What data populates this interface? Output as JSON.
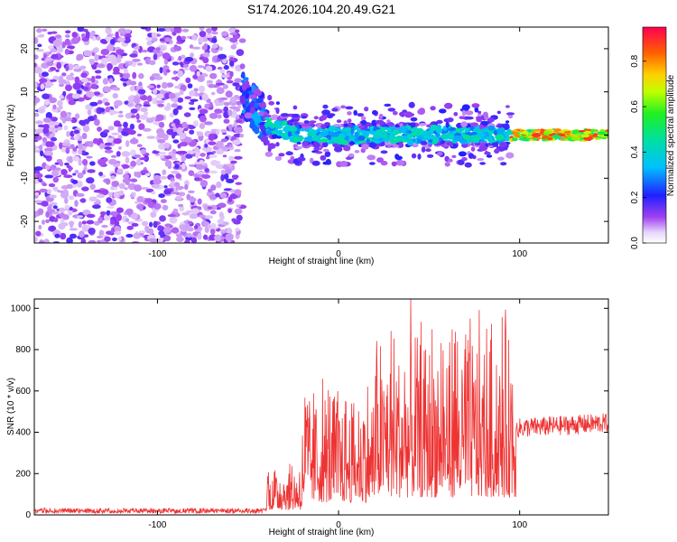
{
  "title": "S174.2026.104.20.49.G21",
  "chart_data": [
    {
      "type": "heatmap",
      "name": "spectrogram",
      "xlabel": "Height of straight line (km)",
      "ylabel": "Frequency (Hz)",
      "xlim": [
        -168,
        149
      ],
      "ylim": [
        -25,
        25
      ],
      "xticks": [
        -100,
        0,
        100
      ],
      "xtick_labels": [
        "-100",
        "0",
        "100"
      ],
      "yticks": [
        -20,
        -10,
        0,
        10,
        20
      ],
      "ytick_labels": [
        "-20",
        "-10",
        "0",
        "10",
        "20"
      ],
      "regions": [
        {
          "name": "noise",
          "x_range": [
            -168,
            -53
          ],
          "description_value": "scattered low amplitude 0.1-0.5"
        },
        {
          "name": "transition",
          "x_range": [
            -53,
            -40
          ],
          "center_hz": [
            10,
            3
          ]
        },
        {
          "name": "signal",
          "x_range": [
            -40,
            95
          ],
          "center_hz": 0,
          "amplitude": [
            0.2,
            0.6
          ]
        },
        {
          "name": "strong-signal",
          "x_range": [
            95,
            149
          ],
          "center_hz": 0,
          "amplitude": [
            0.6,
            0.9
          ]
        }
      ],
      "colorbar": {
        "label": "Normalized spectral amplitude",
        "range": [
          0.0,
          0.95
        ],
        "ticks": [
          0.0,
          0.2,
          0.4,
          0.6,
          0.8
        ],
        "tick_labels": [
          "0.0",
          "0.2",
          "0.4",
          "0.6",
          "0.8"
        ]
      }
    },
    {
      "type": "line",
      "name": "snr",
      "xlabel": "Height of straight line (km)",
      "ylabel": "SNR (10 * v/v)",
      "xlim": [
        -168,
        149
      ],
      "ylim": [
        0,
        1045
      ],
      "xticks": [
        -100,
        0,
        100
      ],
      "xtick_labels": [
        "-100",
        "0",
        "100"
      ],
      "yticks": [
        0,
        200,
        400,
        600,
        800,
        1000
      ],
      "ytick_labels": [
        "0",
        "200",
        "400",
        "600",
        "800",
        "1000"
      ],
      "color": "#ee3333",
      "segments": [
        {
          "x_range": [
            -168,
            -40
          ],
          "baseline": 20,
          "noise_amplitude": 25
        },
        {
          "x_range": [
            -40,
            -20
          ],
          "baseline": 80,
          "noise_amplitude": 300
        },
        {
          "x_range": [
            -20,
            20
          ],
          "baseline": 200,
          "noise_amplitude": 700
        },
        {
          "x_range": [
            20,
            98
          ],
          "baseline": 280,
          "noise_amplitude": 1000
        },
        {
          "x_range": [
            98,
            149
          ],
          "baseline": 420,
          "noise_amplitude": 160
        }
      ]
    }
  ]
}
